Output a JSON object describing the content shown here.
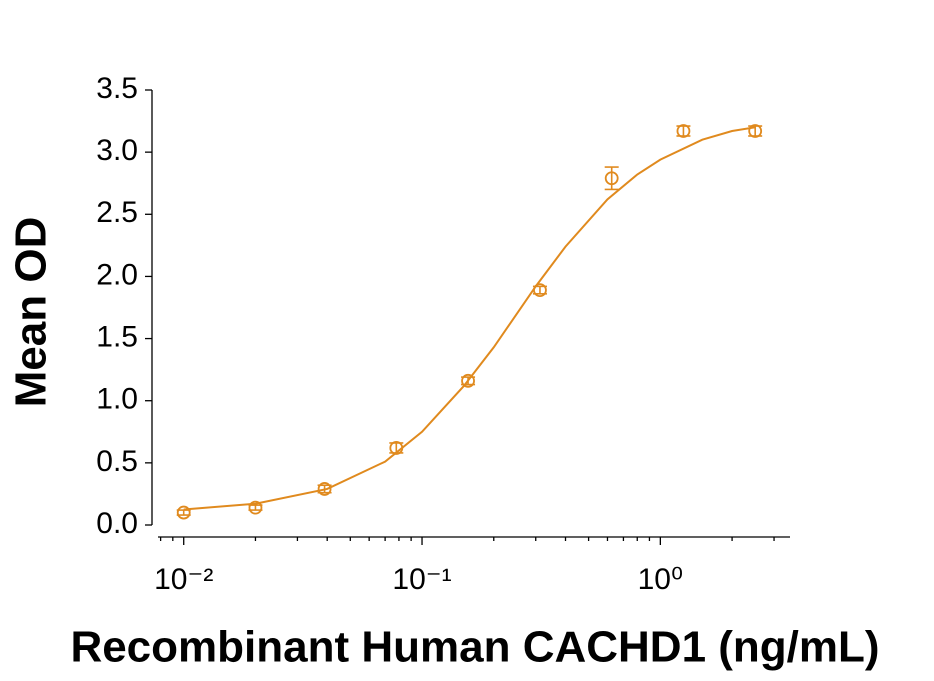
{
  "chart_data": {
    "type": "scatter",
    "log_x": true,
    "color": "#e08a1e",
    "x_label": "Recombinant Human CACHD1 (ng/mL)",
    "y_label": "Mean OD",
    "x": [
      0.01,
      0.02,
      0.039,
      0.078,
      0.156,
      0.3125,
      0.625,
      1.25,
      2.5
    ],
    "values": [
      0.1,
      0.14,
      0.29,
      0.62,
      1.16,
      1.89,
      2.79,
      3.17,
      3.17
    ],
    "errors": [
      0.02,
      0.02,
      0.03,
      0.04,
      0.03,
      0.03,
      0.09,
      0.04,
      0.04
    ],
    "fit": {
      "x": [
        0.01,
        0.02,
        0.04,
        0.07,
        0.1,
        0.15,
        0.2,
        0.3,
        0.4,
        0.6,
        0.8,
        1,
        1.5,
        2,
        2.5
      ],
      "values": [
        0.125,
        0.171,
        0.29,
        0.51,
        0.75,
        1.12,
        1.43,
        1.92,
        2.24,
        2.62,
        2.82,
        2.94,
        3.1,
        3.17,
        3.2
      ]
    },
    "xlim": [
      0.0078,
      3.5
    ],
    "ylim": [
      0,
      3.5
    ],
    "xticks": [
      {
        "value": 0.01,
        "label": "10⁻²"
      },
      {
        "value": 0.1,
        "label": "10⁻¹"
      },
      {
        "value": 1,
        "label": "10⁰"
      }
    ],
    "yticks": [
      {
        "value": 0,
        "label": "0.0"
      },
      {
        "value": 0.5,
        "label": "0.5"
      },
      {
        "value": 1,
        "label": "1.0"
      },
      {
        "value": 1.5,
        "label": "1.5"
      },
      {
        "value": 2,
        "label": "2.0"
      },
      {
        "value": 2.5,
        "label": "2.5"
      },
      {
        "value": 3,
        "label": "3.0"
      },
      {
        "value": 3.5,
        "label": "3.5"
      }
    ]
  }
}
